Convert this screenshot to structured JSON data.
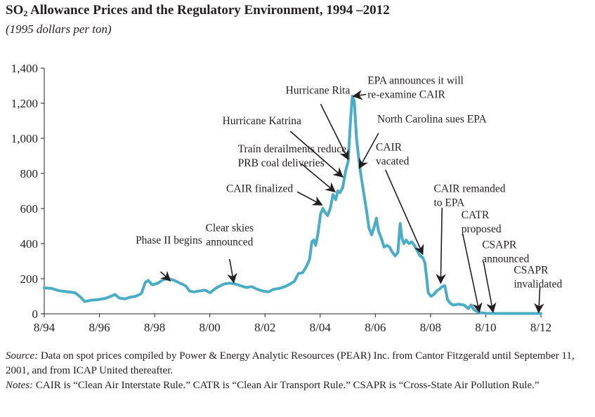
{
  "title_prefix": "SO",
  "title_sub": "2",
  "title_rest": " Allowance Prices and the Regulatory Environment, 1994 –2012",
  "subtitle": "(1995 dollars per ton)",
  "chart_data": {
    "type": "line",
    "xlim": [
      1994.583,
      2012.583
    ],
    "ylim": [
      0,
      1400
    ],
    "grid": false,
    "x_ticks": [
      {
        "value": 1994.583,
        "label": "8/94"
      },
      {
        "value": 1996.583,
        "label": "8/96"
      },
      {
        "value": 1998.583,
        "label": "8/98"
      },
      {
        "value": 2000.583,
        "label": "8/00"
      },
      {
        "value": 2002.583,
        "label": "8/02"
      },
      {
        "value": 2004.583,
        "label": "8/04"
      },
      {
        "value": 2006.583,
        "label": "8/06"
      },
      {
        "value": 2008.583,
        "label": "8/08"
      },
      {
        "value": 2010.583,
        "label": "8/10"
      },
      {
        "value": 2012.583,
        "label": "8/12"
      }
    ],
    "y_ticks": [
      {
        "value": 0,
        "label": "0"
      },
      {
        "value": 200,
        "label": "200"
      },
      {
        "value": 400,
        "label": "400"
      },
      {
        "value": 600,
        "label": "600"
      },
      {
        "value": 800,
        "label": "800"
      },
      {
        "value": 1000,
        "label": "1,000"
      },
      {
        "value": 1200,
        "label": "1,200"
      },
      {
        "value": 1400,
        "label": "1,400"
      }
    ],
    "series": [
      {
        "color": "#4bacc6",
        "points": [
          [
            1994.583,
            148
          ],
          [
            1994.85,
            145
          ],
          [
            1995.1,
            132
          ],
          [
            1995.4,
            126
          ],
          [
            1995.7,
            120
          ],
          [
            1995.9,
            95
          ],
          [
            1996.05,
            70
          ],
          [
            1996.3,
            78
          ],
          [
            1996.5,
            80
          ],
          [
            1996.8,
            88
          ],
          [
            1997.0,
            100
          ],
          [
            1997.15,
            110
          ],
          [
            1997.3,
            90
          ],
          [
            1997.5,
            85
          ],
          [
            1997.7,
            95
          ],
          [
            1997.9,
            100
          ],
          [
            1998.1,
            115
          ],
          [
            1998.25,
            180
          ],
          [
            1998.35,
            190
          ],
          [
            1998.5,
            165
          ],
          [
            1998.7,
            175
          ],
          [
            1998.9,
            195
          ],
          [
            1999.1,
            200
          ],
          [
            1999.3,
            190
          ],
          [
            1999.5,
            175
          ],
          [
            1999.7,
            160
          ],
          [
            1999.85,
            130
          ],
          [
            2000.0,
            125
          ],
          [
            2000.2,
            130
          ],
          [
            2000.4,
            135
          ],
          [
            2000.6,
            120
          ],
          [
            2000.75,
            140
          ],
          [
            2000.9,
            155
          ],
          [
            2001.1,
            170
          ],
          [
            2001.3,
            175
          ],
          [
            2001.5,
            170
          ],
          [
            2001.7,
            160
          ],
          [
            2001.9,
            150
          ],
          [
            2002.1,
            155
          ],
          [
            2002.3,
            140
          ],
          [
            2002.5,
            130
          ],
          [
            2002.7,
            125
          ],
          [
            2002.9,
            140
          ],
          [
            2003.1,
            145
          ],
          [
            2003.3,
            155
          ],
          [
            2003.5,
            170
          ],
          [
            2003.65,
            185
          ],
          [
            2003.8,
            230
          ],
          [
            2003.95,
            235
          ],
          [
            2004.1,
            275
          ],
          [
            2004.2,
            310
          ],
          [
            2004.28,
            410
          ],
          [
            2004.35,
            420
          ],
          [
            2004.42,
            390
          ],
          [
            2004.5,
            455
          ],
          [
            2004.6,
            570
          ],
          [
            2004.68,
            600
          ],
          [
            2004.75,
            580
          ],
          [
            2004.85,
            560
          ],
          [
            2004.95,
            600
          ],
          [
            2005.05,
            680
          ],
          [
            2005.15,
            650
          ],
          [
            2005.22,
            700
          ],
          [
            2005.3,
            690
          ],
          [
            2005.4,
            720
          ],
          [
            2005.5,
            810
          ],
          [
            2005.6,
            870
          ],
          [
            2005.68,
            1100
          ],
          [
            2005.75,
            1240
          ],
          [
            2005.82,
            1210
          ],
          [
            2005.9,
            1000
          ],
          [
            2005.97,
            900
          ],
          [
            2006.05,
            800
          ],
          [
            2006.15,
            700
          ],
          [
            2006.25,
            600
          ],
          [
            2006.35,
            490
          ],
          [
            2006.45,
            450
          ],
          [
            2006.55,
            500
          ],
          [
            2006.62,
            545
          ],
          [
            2006.7,
            470
          ],
          [
            2006.8,
            430
          ],
          [
            2006.9,
            380
          ],
          [
            2007.0,
            390
          ],
          [
            2007.1,
            380
          ],
          [
            2007.2,
            350
          ],
          [
            2007.3,
            330
          ],
          [
            2007.4,
            350
          ],
          [
            2007.48,
            515
          ],
          [
            2007.55,
            430
          ],
          [
            2007.62,
            400
          ],
          [
            2007.7,
            420
          ],
          [
            2007.8,
            400
          ],
          [
            2007.9,
            410
          ],
          [
            2008.0,
            390
          ],
          [
            2008.1,
            360
          ],
          [
            2008.2,
            330
          ],
          [
            2008.3,
            320
          ],
          [
            2008.38,
            290
          ],
          [
            2008.43,
            220
          ],
          [
            2008.5,
            120
          ],
          [
            2008.6,
            100
          ],
          [
            2008.7,
            110
          ],
          [
            2008.8,
            130
          ],
          [
            2008.9,
            140
          ],
          [
            2009.0,
            155
          ],
          [
            2009.1,
            160
          ],
          [
            2009.2,
            80
          ],
          [
            2009.3,
            60
          ],
          [
            2009.4,
            50
          ],
          [
            2009.6,
            55
          ],
          [
            2009.8,
            50
          ],
          [
            2009.95,
            30
          ],
          [
            2010.05,
            50
          ],
          [
            2010.15,
            25
          ],
          [
            2010.3,
            10
          ],
          [
            2010.45,
            5
          ],
          [
            2010.6,
            3
          ],
          [
            2011.0,
            2
          ],
          [
            2011.5,
            2
          ],
          [
            2012.0,
            2
          ],
          [
            2012.583,
            2
          ]
        ]
      }
    ],
    "annotations": [
      {
        "lines": [
          "Phase II begins"
        ],
        "text_x": 1999.1,
        "text_y": 400,
        "anchor": "middle",
        "arrow_from": [
          1998.8,
          240
        ],
        "arrow_to": [
          1999.15,
          188
        ]
      },
      {
        "lines": [
          "Clear skies",
          "announced"
        ],
        "text_x": 2001.3,
        "text_y": 470,
        "anchor": "middle",
        "arrow_from": [
          2001.3,
          312
        ],
        "arrow_to": [
          2001.45,
          178
        ]
      },
      {
        "lines": [
          "CAIR finalized"
        ],
        "text_x": 2003.6,
        "text_y": 695,
        "anchor": "end",
        "arrow_from": [
          2003.75,
          695
        ],
        "arrow_to": [
          2004.65,
          620
        ]
      },
      {
        "lines": [
          "Train derailments reduce",
          "PRB coal deliveries"
        ],
        "text_x": 2001.6,
        "text_y": 920,
        "anchor": "start",
        "arrow_from": [
          2003.9,
          855
        ],
        "arrow_to": [
          2005.12,
          695
        ]
      },
      {
        "lines": [
          "Hurricane Katrina"
        ],
        "text_x": 2003.9,
        "text_y": 1080,
        "anchor": "end",
        "arrow_from": [
          2003.5,
          1040
        ],
        "arrow_to": [
          2005.4,
          780
        ]
      },
      {
        "lines": [
          "Hurricane Rita"
        ],
        "text_x": 2004.5,
        "text_y": 1255,
        "anchor": "middle",
        "arrow_from": [
          2004.6,
          1195
        ],
        "arrow_to": [
          2005.6,
          880
        ]
      },
      {
        "lines": [
          "EPA announces it will",
          "re-examine CAIR"
        ],
        "text_x": 2006.3,
        "text_y": 1310,
        "anchor": "start",
        "arrow_from": [
          2006.25,
          1250
        ],
        "arrow_to": [
          2005.78,
          1240
        ]
      },
      {
        "lines": [
          "North Carolina sues EPA"
        ],
        "text_x": 2006.65,
        "text_y": 1090,
        "anchor": "start",
        "arrow_from": [
          2006.7,
          1030
        ],
        "arrow_to": [
          2006.0,
          830
        ]
      },
      {
        "lines": [
          "CAIR",
          "vacated"
        ],
        "text_x": 2006.6,
        "text_y": 930,
        "anchor": "start",
        "arrow_from": [
          2006.95,
          820
        ],
        "arrow_to": [
          2008.3,
          340
        ]
      },
      {
        "lines": [
          "CAIR remanded",
          "to EPA"
        ],
        "text_x": 2008.7,
        "text_y": 695,
        "anchor": "start",
        "arrow_from": [
          2009.0,
          605
        ],
        "arrow_to": [
          2008.95,
          175
        ]
      },
      {
        "lines": [
          "CATR",
          "proposed"
        ],
        "text_x": 2009.7,
        "text_y": 545,
        "anchor": "start",
        "arrow_from": [
          2009.75,
          455
        ],
        "arrow_to": [
          2010.35,
          10
        ]
      },
      {
        "lines": [
          "CSAPR",
          "announced"
        ],
        "text_x": 2010.45,
        "text_y": 375,
        "anchor": "start",
        "arrow_from": [
          2010.5,
          298
        ],
        "arrow_to": [
          2010.85,
          10
        ]
      },
      {
        "lines": [
          "CSAPR",
          "invalidated"
        ],
        "text_x": 2011.6,
        "text_y": 230,
        "anchor": "start",
        "arrow_from": [
          2012.55,
          155
        ],
        "arrow_to": [
          2012.5,
          8
        ]
      }
    ]
  },
  "source": {
    "source_label": "Source:",
    "source_text": " Data on spot prices compiled by Power & Energy Analytic Resources (PEAR) Inc. from Cantor Fitzgerald until September 11, 2001, and from ICAP United thereafter.",
    "notes_label": "Notes:",
    "notes_text": " CAIR is “Clean Air Interstate Rule.” CATR is “Clean Air Transport Rule.” CSAPR is “Cross-State Air Pollution Rule.”"
  }
}
